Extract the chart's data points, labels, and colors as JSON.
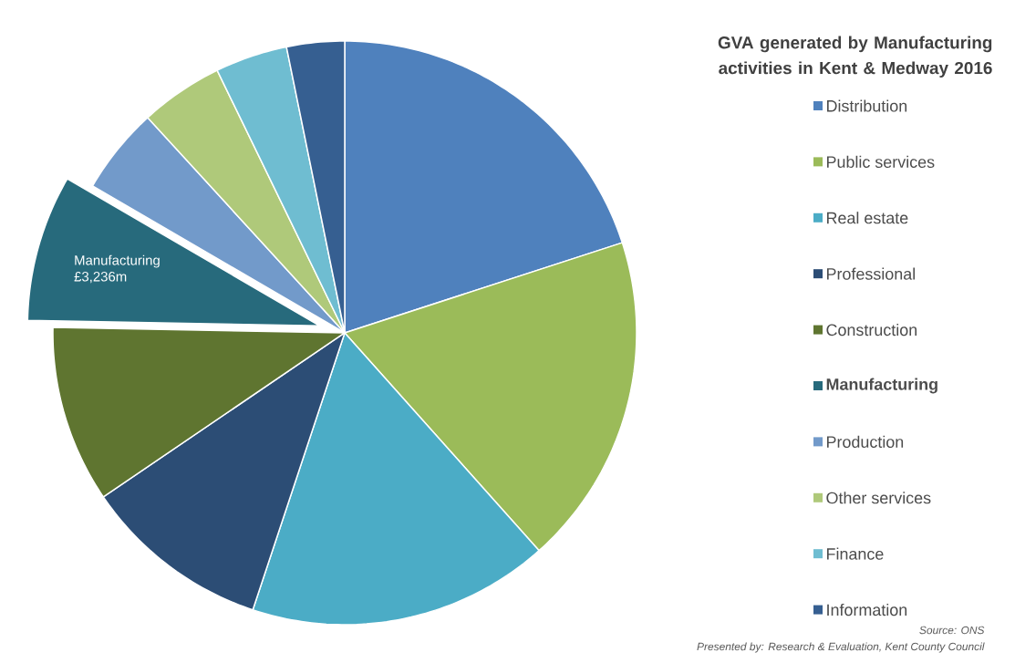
{
  "chart_data": {
    "type": "pie",
    "title": "GVA generated by Manufacturing  activities in Kent & Medway 2016",
    "categories": [
      "Distribution",
      "Public services",
      "Real estate",
      "Professional",
      "Construction",
      "Manufacturing",
      "Production",
      "Other services",
      "Finance",
      "Information"
    ],
    "values": [
      20.0,
      18.4,
      16.7,
      10.4,
      9.8,
      8.1,
      4.8,
      4.6,
      4.0,
      3.2
    ],
    "colors": [
      "#4f81bd",
      "#9bbb59",
      "#4bacc6",
      "#2c4d75",
      "#5f7530",
      "#276a7c",
      "#729aca",
      "#afc97a",
      "#6fbdd1",
      "#365f91"
    ],
    "legend": "right",
    "annotations": [
      {
        "text": "£3,236m",
        "x": "Manufacturing"
      },
      "Source:  ONS",
      "Presented by:  Research & Evaluation,  Kent County Council"
    ]
  }
}
